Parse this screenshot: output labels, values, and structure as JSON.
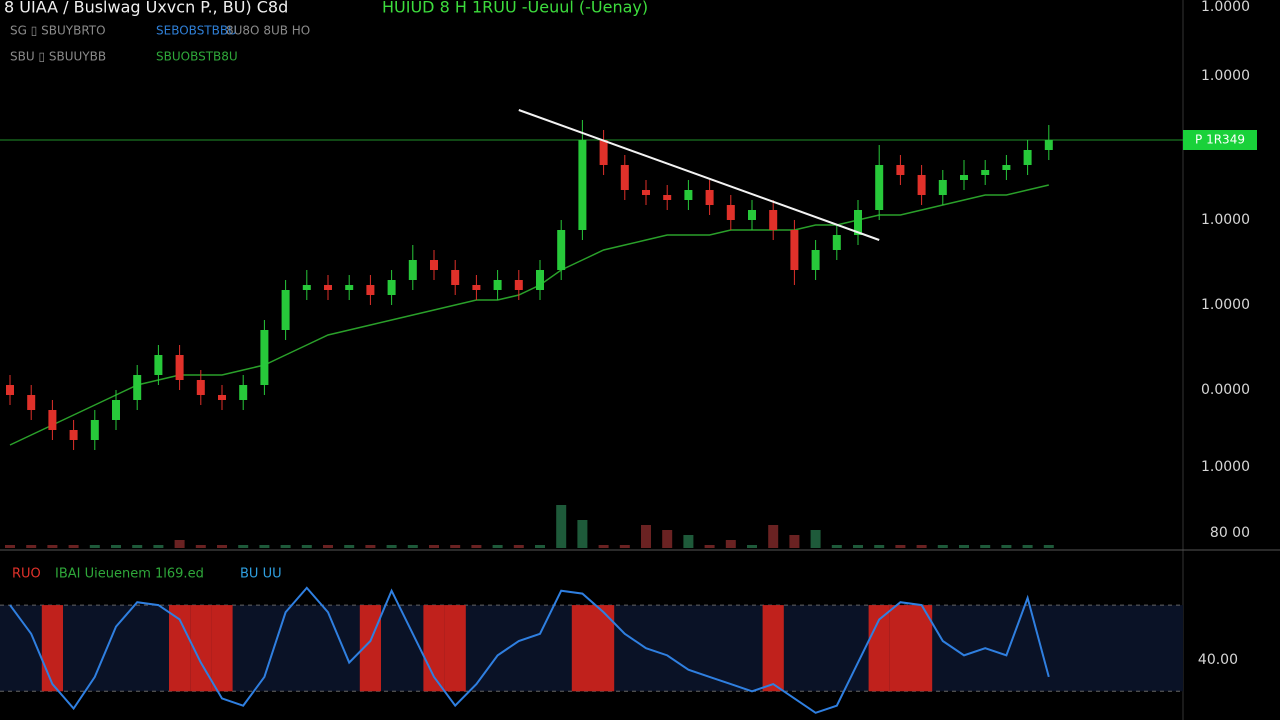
{
  "header": {
    "title": "8 UIAA / Buslwag Uxvcn P., BU) C8d",
    "status": "HUIUD 8 H 1RUU -Ueuul (-Uenay)",
    "row2_left": "SG ▯ SBUYBRTO",
    "row2_mid": "SEBOBSTBBU",
    "row2_right": "8U8O 8UB HO",
    "row3_left": "SBU ▯ SBUUYBB",
    "row3_mid": "SBUOBSTB8U"
  },
  "price_pane": {
    "open": [
      33,
      31,
      28,
      24,
      22,
      26,
      30,
      35,
      39,
      34,
      31,
      30,
      33,
      44,
      52,
      53,
      52,
      53,
      51,
      54,
      58,
      56,
      53,
      52,
      54,
      52,
      56,
      64,
      82,
      77,
      72,
      71,
      70,
      72,
      69,
      66,
      68,
      64,
      56,
      60,
      63,
      68,
      77,
      75,
      71,
      74,
      75,
      76,
      77,
      80
    ],
    "high": [
      35,
      33,
      30,
      26,
      28,
      32,
      37,
      41,
      41,
      36,
      33,
      35,
      46,
      54,
      56,
      55,
      55,
      55,
      56,
      61,
      60,
      58,
      55,
      56,
      56,
      58,
      66,
      86,
      84,
      79,
      74,
      73,
      74,
      74,
      71,
      70,
      70,
      66,
      62,
      65,
      70,
      81,
      79,
      77,
      76,
      78,
      78,
      79,
      82,
      85
    ],
    "low": [
      29,
      26,
      22,
      20,
      20,
      24,
      28,
      33,
      32,
      29,
      28,
      28,
      31,
      42,
      50,
      50,
      50,
      49,
      49,
      52,
      54,
      51,
      50,
      50,
      50,
      50,
      54,
      62,
      75,
      70,
      69,
      68,
      68,
      67,
      64,
      64,
      62,
      53,
      54,
      58,
      61,
      66,
      73,
      69,
      69,
      72,
      73,
      74,
      75,
      78
    ],
    "close": [
      31,
      28,
      24,
      22,
      26,
      30,
      35,
      39,
      34,
      31,
      30,
      33,
      44,
      52,
      53,
      52,
      53,
      51,
      54,
      58,
      56,
      53,
      52,
      54,
      52,
      56,
      64,
      82,
      77,
      72,
      71,
      70,
      72,
      69,
      66,
      68,
      64,
      56,
      60,
      63,
      68,
      77,
      75,
      71,
      74,
      75,
      76,
      77,
      80,
      82
    ],
    "ma": [
      21,
      23,
      25,
      27,
      29,
      31,
      33,
      34,
      35,
      35,
      35,
      36,
      37,
      39,
      41,
      43,
      44,
      45,
      46,
      47,
      48,
      49,
      50,
      50,
      51,
      53,
      56,
      58,
      60,
      61,
      62,
      63,
      63,
      63,
      64,
      64,
      64,
      64,
      65,
      65,
      66,
      67,
      67,
      68,
      69,
      70,
      71,
      71,
      72,
      73
    ],
    "volume": [
      1,
      1,
      1,
      1,
      1,
      1,
      1,
      1,
      2,
      1,
      1,
      1,
      1,
      1,
      1,
      1,
      1,
      1,
      1,
      1,
      1,
      1,
      1,
      1,
      1,
      1,
      9,
      6,
      1,
      1,
      5,
      4,
      3,
      1,
      2,
      1,
      5,
      3,
      4,
      1,
      1,
      1,
      1,
      1,
      1,
      1,
      1,
      1,
      1,
      1
    ],
    "ylim": [
      0,
      110
    ],
    "trendline_x": [
      24,
      41
    ],
    "trendline": [
      88,
      62
    ],
    "price_tag": "P 1R349",
    "axis_labels": [
      "1.0000",
      "1.0000",
      "1.0000",
      "1.0000",
      "0.0000",
      "1.0000",
      "80 00"
    ]
  },
  "rsi_pane": {
    "labels": [
      "RUO",
      "IBAI Uieuenem 1l69.ed",
      "BU UU"
    ],
    "values": [
      80,
      60,
      25,
      8,
      30,
      65,
      82,
      80,
      70,
      40,
      15,
      10,
      30,
      75,
      92,
      75,
      40,
      55,
      90,
      60,
      30,
      10,
      25,
      45,
      55,
      60,
      90,
      88,
      75,
      60,
      50,
      45,
      35,
      30,
      25,
      20,
      25,
      15,
      5,
      10,
      40,
      70,
      82,
      80,
      55,
      45,
      50,
      45,
      85,
      30
    ],
    "ylim": [
      0,
      110
    ],
    "levels": [
      80,
      20
    ],
    "signals": [
      2,
      8,
      9,
      10,
      17,
      20,
      21,
      27,
      28,
      36,
      41,
      42,
      43
    ],
    "axis_label": "40.00"
  }
}
